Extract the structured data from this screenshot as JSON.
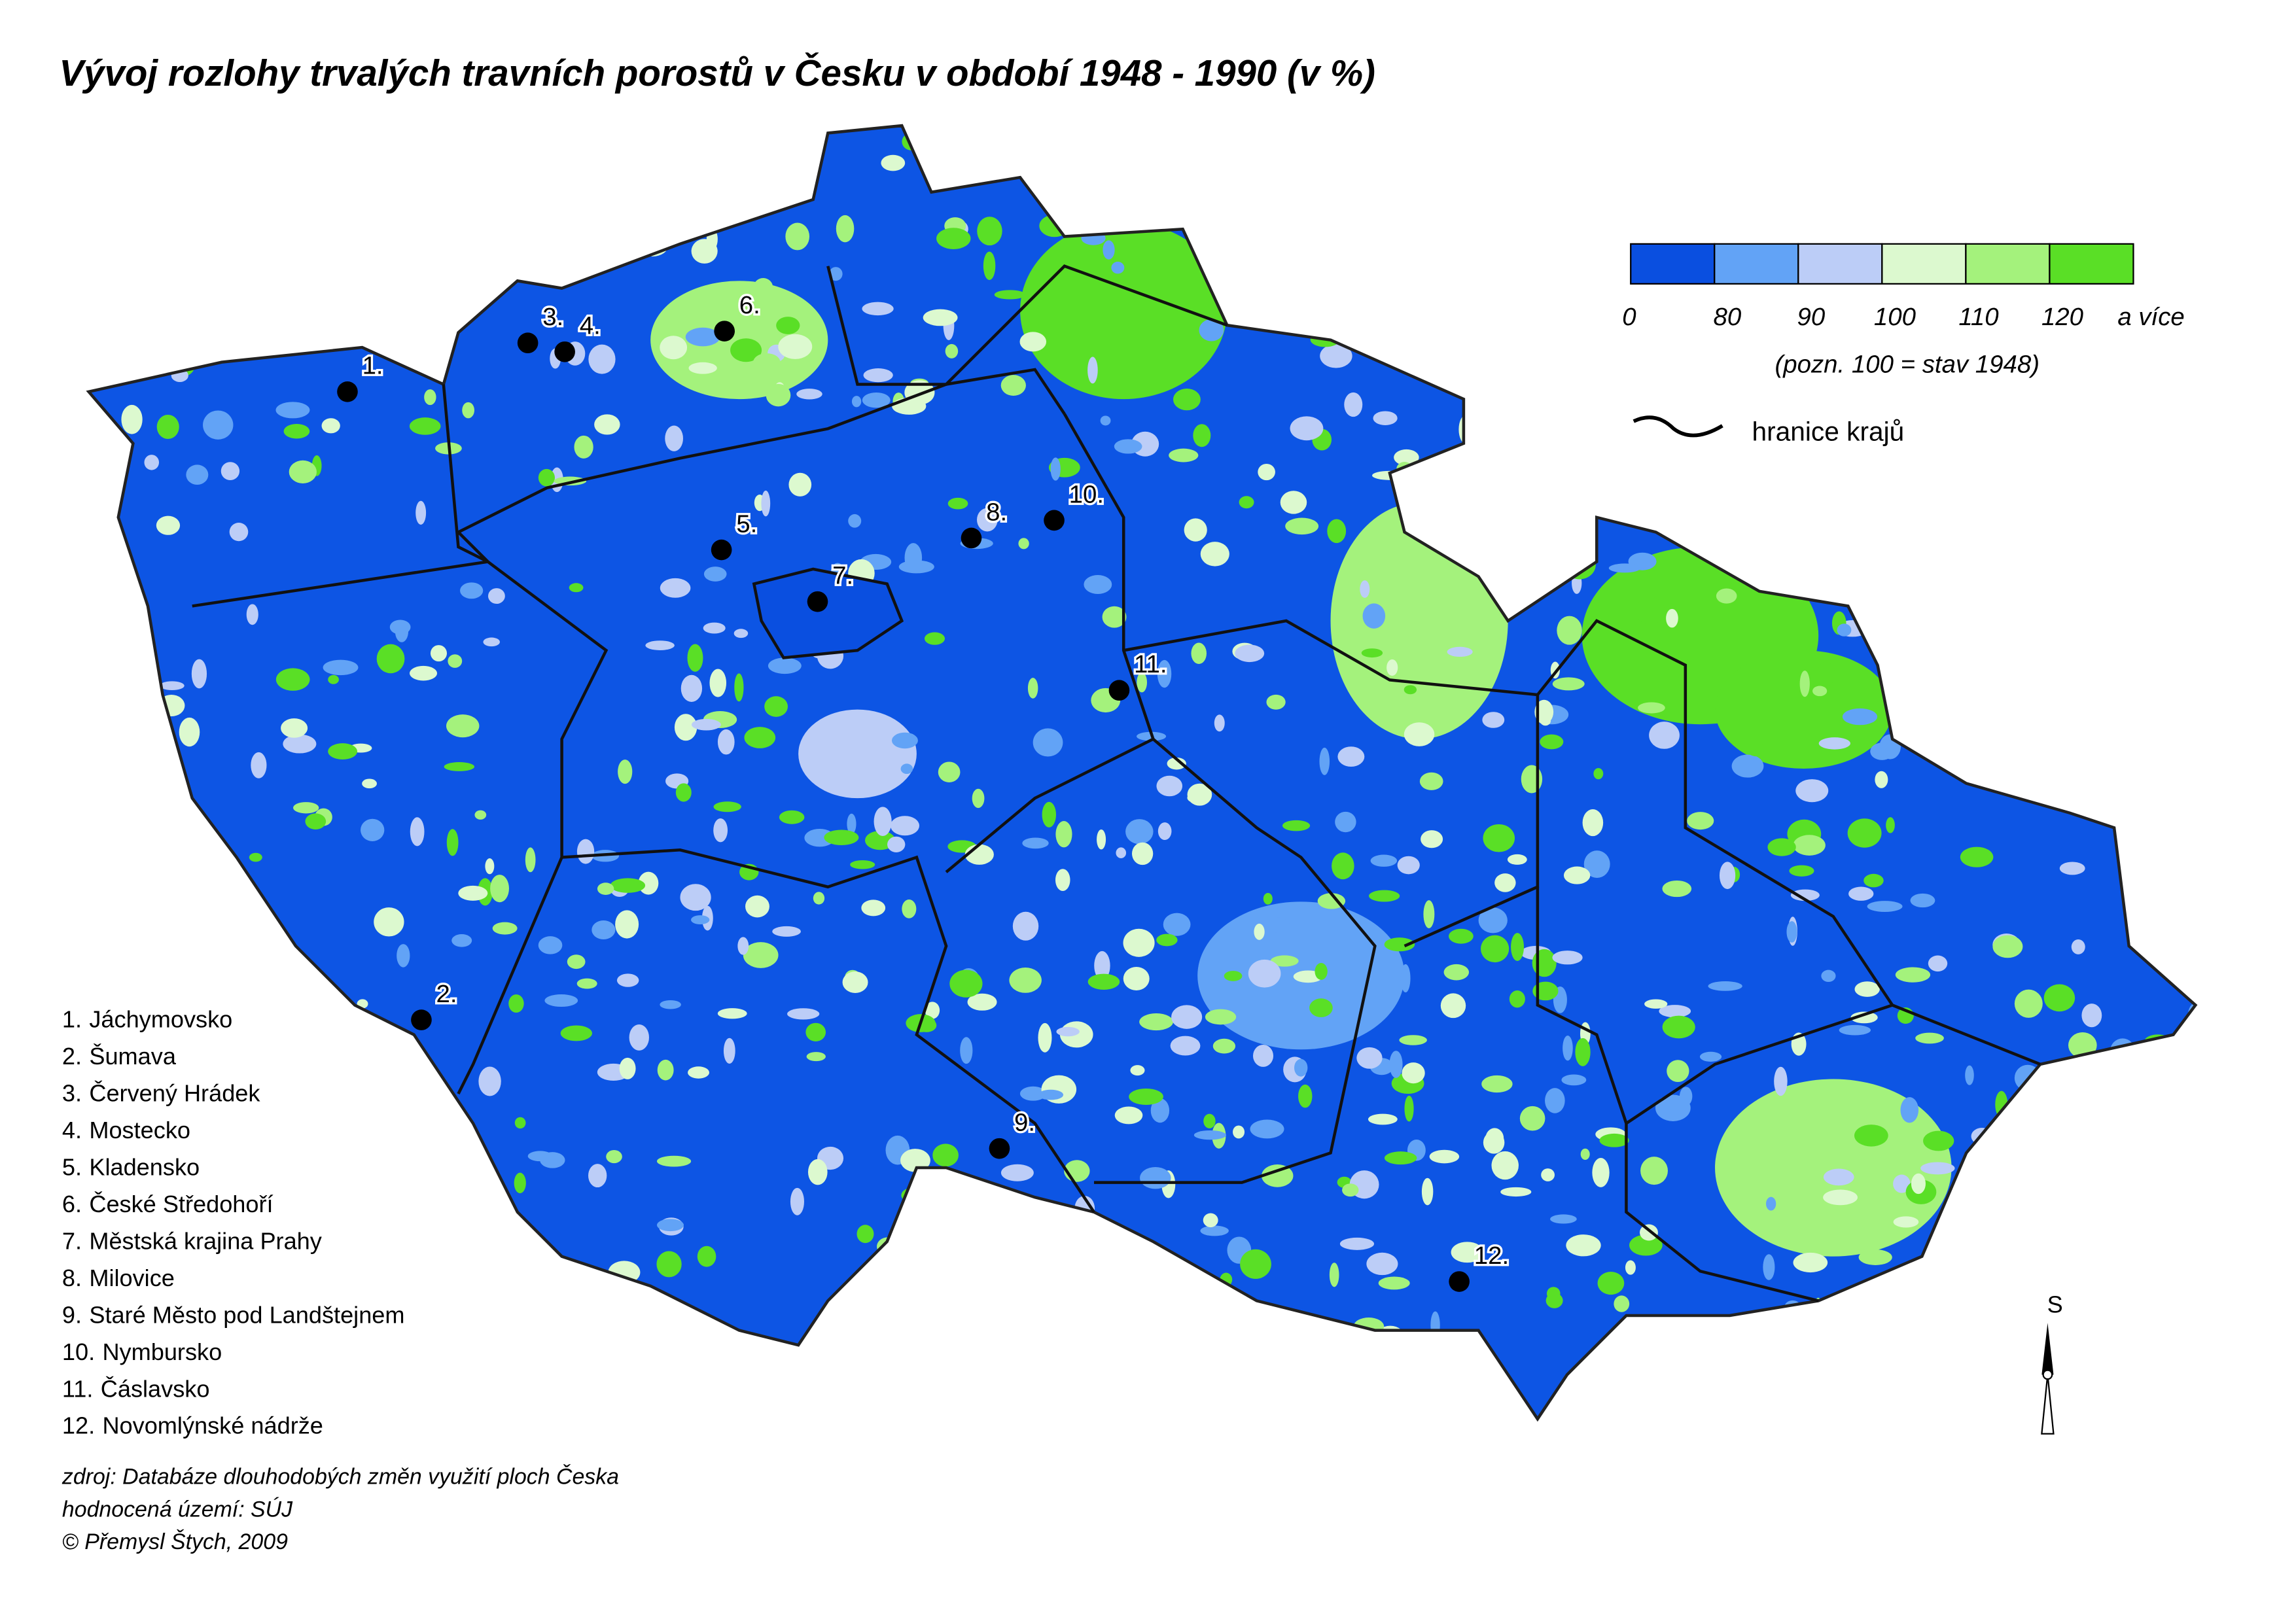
{
  "title": "Vývoj rozlohy trvalých travních porostů v Česku v období 1948 - 1990 (v %)",
  "legend": {
    "classes": [
      {
        "label": "0",
        "color": "#0a4fe0"
      },
      {
        "label": "80",
        "color": "#62a3f6"
      },
      {
        "label": "90",
        "color": "#bccdf7"
      },
      {
        "label": "100",
        "color": "#dcf9cf"
      },
      {
        "label": "110",
        "color": "#a4f27c"
      },
      {
        "label": "120",
        "color": "#5adf26"
      }
    ],
    "top_label": "a více",
    "note": "(pozn. 100 = stav 1948)",
    "border_label": "hranice krajů"
  },
  "places": [
    {
      "number": "1.",
      "name": "Jáchymovsko"
    },
    {
      "number": "2.",
      "name": "Šumava"
    },
    {
      "number": "3.",
      "name": "Červený Hrádek"
    },
    {
      "number": "4.",
      "name": "Mostecko"
    },
    {
      "number": "5.",
      "name": "Kladensko"
    },
    {
      "number": "6.",
      "name": "České Středohoří"
    },
    {
      "number": "7.",
      "name": "Městská krajina Prahy"
    },
    {
      "number": "8.",
      "name": "Milovice"
    },
    {
      "number": "9.",
      "name": "Staré Město pod Landštejnem"
    },
    {
      "number": "10.",
      "name": "Nymbursko"
    },
    {
      "number": "11.",
      "name": "Čáslavsko"
    },
    {
      "number": "12.",
      "name": "Novomlýnské nádrže"
    }
  ],
  "source": [
    "zdroj: Databáze dlouhodobých změn využití ploch Česka",
    "hodnocená území: SÚJ",
    "© Přemysl Štych, 2009"
  ],
  "north": "S"
}
